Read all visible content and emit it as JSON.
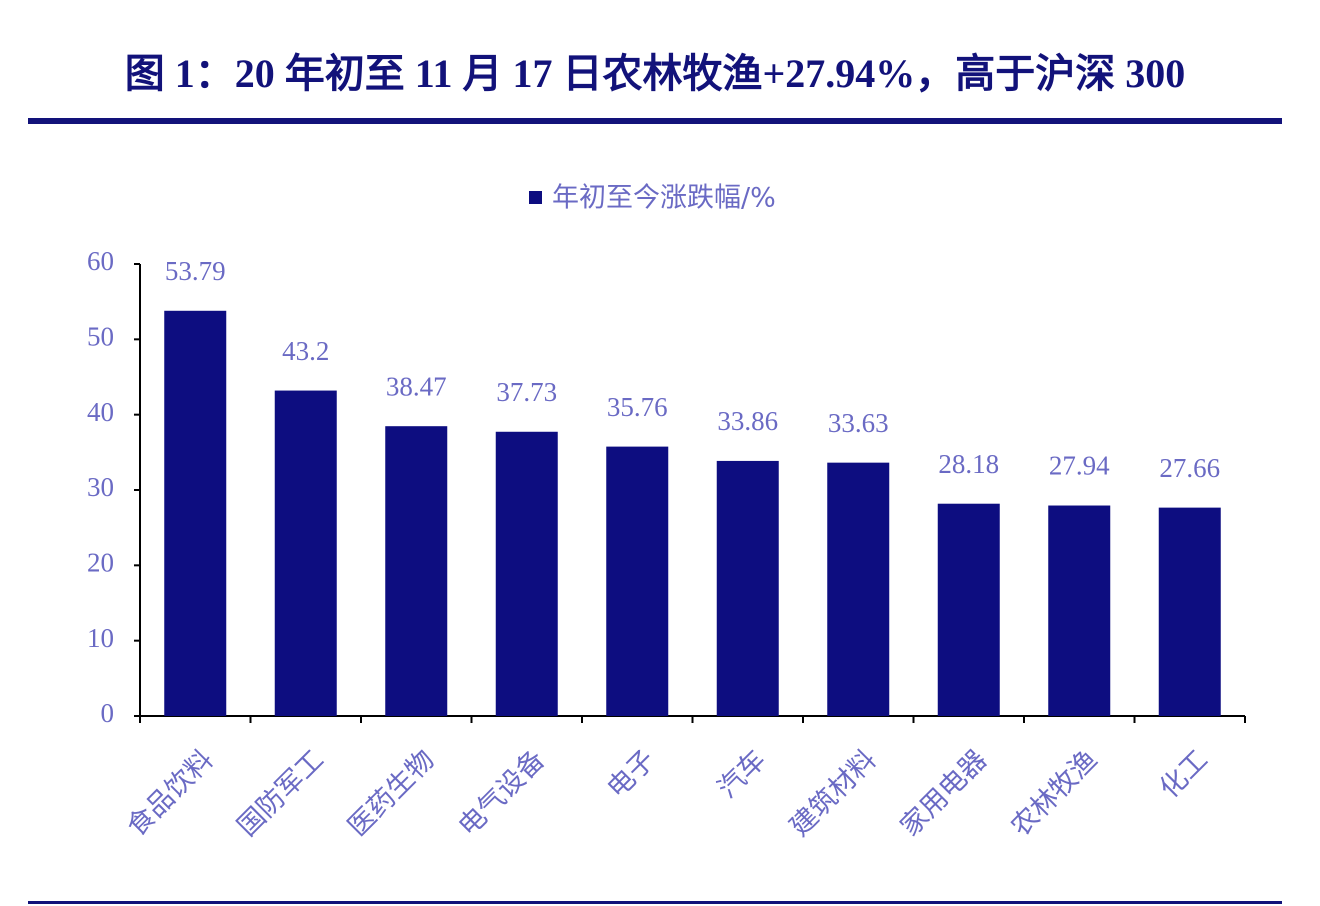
{
  "chart_data": {
    "type": "bar",
    "title": "图 1：20 年初至 11 月 17 日农林牧渔+27.94%，高于沪深 300",
    "categories": [
      "食品饮料",
      "国防军工",
      "医药生物",
      "电气设备",
      "电子",
      "汽车",
      "建筑材料",
      "家用电器",
      "农林牧渔",
      "化工"
    ],
    "series": [
      {
        "name": "年初至今涨跌幅/%",
        "color": "#0d0d80",
        "values": [
          53.79,
          43.2,
          38.47,
          37.73,
          35.76,
          33.86,
          33.63,
          28.18,
          27.94,
          27.66
        ]
      }
    ],
    "ylim": [
      0,
      60
    ],
    "yticks": [
      0,
      10,
      20,
      30,
      40,
      50,
      60
    ],
    "grid": false,
    "legend": "top"
  }
}
